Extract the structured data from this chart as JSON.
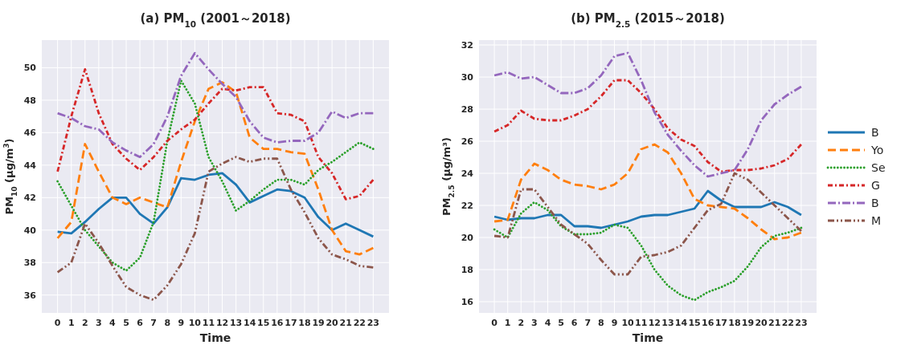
{
  "chart_data": [
    {
      "type": "line",
      "title": "(a) PM$_{10}$ (2001～2018)",
      "xlabel": "Time",
      "ylabel": "PM$_{10}$ (μg/m$^{3}$)",
      "x": [
        0,
        1,
        2,
        3,
        4,
        5,
        6,
        7,
        8,
        9,
        10,
        11,
        12,
        13,
        14,
        15,
        16,
        17,
        18,
        19,
        20,
        21,
        22,
        23
      ],
      "xlim": [
        -1.15,
        24.15
      ],
      "xticks": [
        0,
        1,
        2,
        3,
        4,
        5,
        6,
        7,
        8,
        9,
        10,
        11,
        12,
        13,
        14,
        15,
        16,
        17,
        18,
        19,
        20,
        21,
        22,
        23
      ],
      "ylim": [
        34.9,
        51.7
      ],
      "yticks": [
        36,
        38,
        40,
        42,
        44,
        46,
        48,
        50
      ],
      "grid": true,
      "legend": false,
      "series": [
        {
          "color": "#1f77b4",
          "line_style": "solid",
          "values": [
            39.9,
            39.8,
            40.5,
            41.3,
            42.0,
            42.0,
            41.0,
            40.4,
            41.4,
            43.2,
            43.1,
            43.4,
            43.5,
            42.8,
            41.7,
            42.1,
            42.5,
            42.4,
            42.0,
            40.8,
            40.0,
            40.4,
            40.0,
            39.6
          ]
        },
        {
          "color": "#ff7f0e",
          "line_style": "dashed",
          "values": [
            39.5,
            40.5,
            45.3,
            43.6,
            42.0,
            41.6,
            42.0,
            41.7,
            41.4,
            44.2,
            46.7,
            48.7,
            49.1,
            48.5,
            45.7,
            45.0,
            45.0,
            44.8,
            44.7,
            42.5,
            40.0,
            38.7,
            38.5,
            38.9
          ]
        },
        {
          "color": "#2ca02c",
          "line_style": "dotted",
          "values": [
            43.0,
            41.5,
            40.0,
            39.0,
            38.0,
            37.5,
            38.3,
            40.5,
            45.5,
            49.2,
            47.8,
            44.5,
            43.0,
            41.2,
            41.8,
            42.5,
            43.1,
            43.1,
            42.8,
            43.7,
            44.2,
            44.8,
            45.4,
            45.0
          ]
        },
        {
          "color": "#d62728",
          "line_style": "dashed",
          "values": [
            43.6,
            47.0,
            49.9,
            47.2,
            45.3,
            44.4,
            43.7,
            44.5,
            45.5,
            46.2,
            46.8,
            47.8,
            48.7,
            48.6,
            48.8,
            48.8,
            47.2,
            47.1,
            46.7,
            44.5,
            43.5,
            41.9,
            42.1,
            43.1
          ]
        },
        {
          "color": "#9467bd",
          "line_style": "dashed",
          "values": [
            47.2,
            46.9,
            46.4,
            46.2,
            45.4,
            44.9,
            44.5,
            45.3,
            47.0,
            49.5,
            50.9,
            49.9,
            49.0,
            48.2,
            46.7,
            45.7,
            45.4,
            45.5,
            45.5,
            46.0,
            47.3,
            46.9,
            47.2,
            47.2
          ]
        },
        {
          "color": "#8c564b",
          "line_style": "dashed",
          "values": [
            37.4,
            38.0,
            40.4,
            39.2,
            37.8,
            36.5,
            36.0,
            35.7,
            36.6,
            37.9,
            39.8,
            43.6,
            44.1,
            44.5,
            44.2,
            44.4,
            44.4,
            42.5,
            41.1,
            39.5,
            38.5,
            38.2,
            37.8,
            37.7
          ]
        }
      ]
    },
    {
      "type": "line",
      "title": "(b) PM$_{2.5}$ (2015～2018)",
      "xlabel": "Time",
      "ylabel": "PM$_{2.5}$ (μg/m³)",
      "x": [
        0,
        1,
        2,
        3,
        4,
        5,
        6,
        7,
        8,
        9,
        10,
        11,
        12,
        13,
        14,
        15,
        16,
        17,
        18,
        19,
        20,
        21,
        22,
        23
      ],
      "xlim": [
        -1.15,
        24.15
      ],
      "xticks": [
        0,
        1,
        2,
        3,
        4,
        5,
        6,
        7,
        8,
        9,
        10,
        11,
        12,
        13,
        14,
        15,
        16,
        17,
        18,
        19,
        20,
        21,
        22,
        23
      ],
      "ylim": [
        15.3,
        32.3
      ],
      "yticks": [
        16,
        18,
        20,
        22,
        24,
        26,
        28,
        30,
        32
      ],
      "grid": true,
      "legend": "right",
      "series": [
        {
          "name": "B",
          "color": "#1f77b4",
          "line_style": "solid",
          "values": [
            21.3,
            21.1,
            21.2,
            21.2,
            21.4,
            21.4,
            20.7,
            20.7,
            20.6,
            20.8,
            21.0,
            21.3,
            21.4,
            21.4,
            21.6,
            21.8,
            22.9,
            22.3,
            21.9,
            21.9,
            21.9,
            22.2,
            21.9,
            21.4
          ]
        },
        {
          "name": "Yo",
          "color": "#ff7f0e",
          "line_style": "dashed",
          "values": [
            21.0,
            21.1,
            23.6,
            24.6,
            24.2,
            23.6,
            23.3,
            23.2,
            23.0,
            23.3,
            24.0,
            25.5,
            25.8,
            25.3,
            24.0,
            22.4,
            22.0,
            21.9,
            21.8,
            21.2,
            20.5,
            19.9,
            20.0,
            20.3
          ]
        },
        {
          "name": "Se",
          "color": "#2ca02c",
          "line_style": "dotted",
          "values": [
            20.5,
            20.0,
            21.5,
            22.2,
            21.7,
            20.7,
            20.2,
            20.2,
            20.3,
            20.8,
            20.6,
            19.5,
            18.0,
            17.0,
            16.4,
            16.1,
            16.6,
            16.9,
            17.3,
            18.2,
            19.4,
            20.1,
            20.3,
            20.6
          ]
        },
        {
          "name": "G",
          "color": "#d62728",
          "line_style": "dashed",
          "values": [
            26.6,
            27.0,
            27.9,
            27.4,
            27.3,
            27.3,
            27.6,
            28.0,
            28.8,
            29.8,
            29.8,
            29.0,
            28.0,
            26.8,
            26.1,
            25.7,
            24.7,
            24.1,
            24.2,
            24.2,
            24.3,
            24.5,
            24.9,
            25.8
          ]
        },
        {
          "name": "B",
          "color": "#9467bd",
          "line_style": "dashed",
          "values": [
            30.1,
            30.3,
            29.9,
            30.0,
            29.5,
            29.0,
            29.0,
            29.3,
            30.1,
            31.3,
            31.5,
            29.8,
            27.8,
            26.4,
            25.4,
            24.5,
            23.8,
            24.0,
            24.2,
            25.5,
            27.3,
            28.3,
            28.9,
            29.4
          ]
        },
        {
          "name": "M",
          "color": "#8c564b",
          "line_style": "dashed",
          "values": [
            20.1,
            20.0,
            23.0,
            23.0,
            21.9,
            20.8,
            20.2,
            19.6,
            18.6,
            17.7,
            17.7,
            18.8,
            18.9,
            19.1,
            19.5,
            20.6,
            21.7,
            22.1,
            24.0,
            23.6,
            22.8,
            22.0,
            21.2,
            20.4
          ]
        }
      ]
    }
  ]
}
